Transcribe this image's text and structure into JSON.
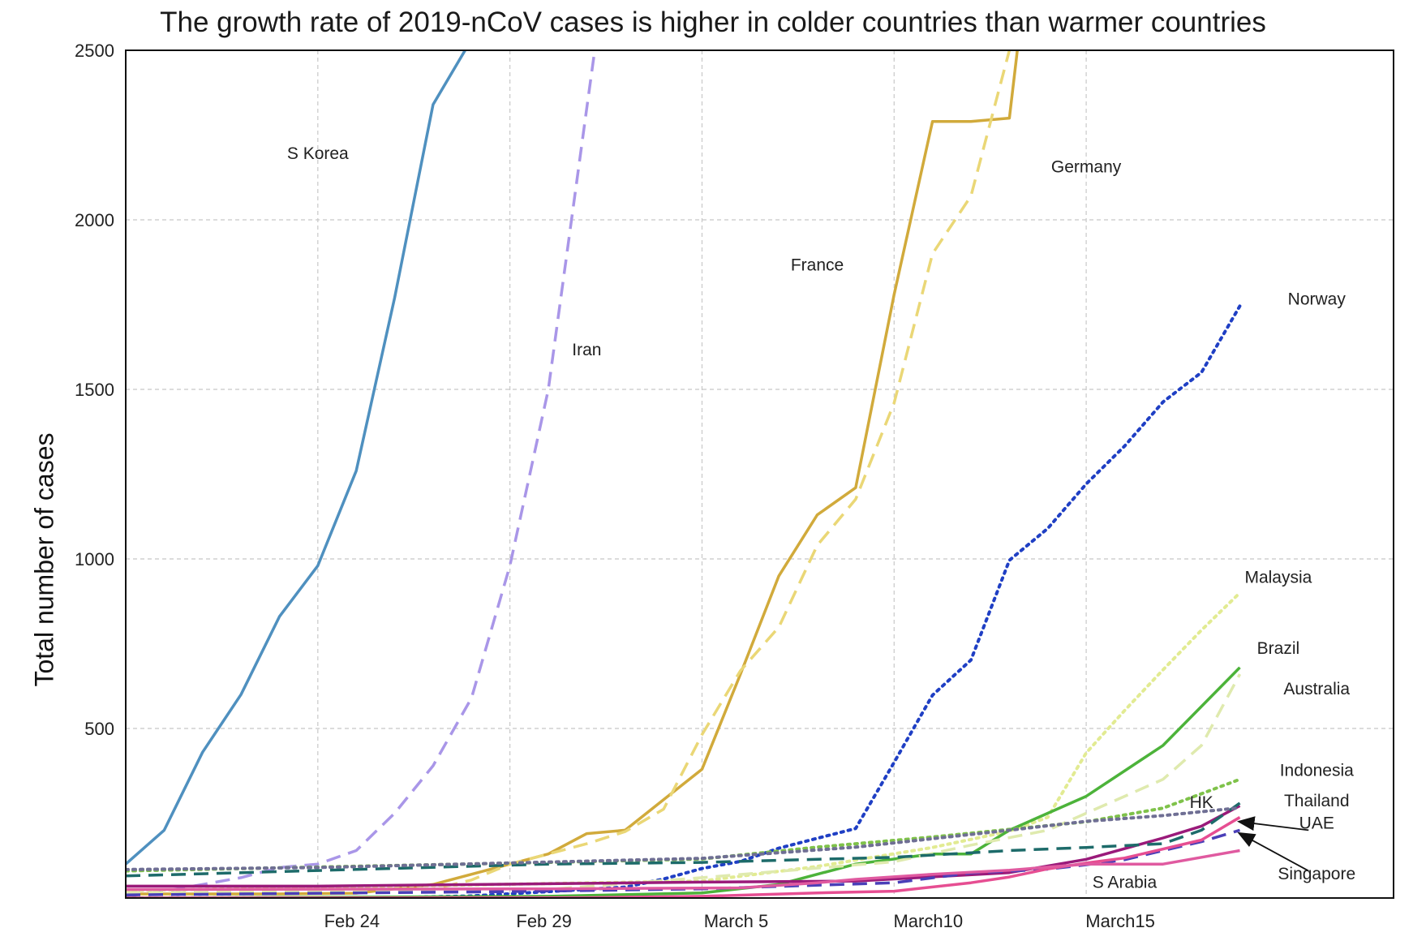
{
  "chart_data": {
    "type": "line",
    "title": "The growth rate of 2019-nCoV cases is higher in colder countries than warmer countries",
    "ylabel": "Total number of cases",
    "xlabel": "",
    "x_range": [
      "2020-02-19",
      "2020-03-23"
    ],
    "ylim": [
      0,
      2500
    ],
    "grid": true,
    "x_ticks": [
      {
        "date": "2020-02-24",
        "label": "Feb 24"
      },
      {
        "date": "2020-02-29",
        "label": "Feb 29"
      },
      {
        "date": "2020-03-05",
        "label": "March 5"
      },
      {
        "date": "2020-03-10",
        "label": "March10"
      },
      {
        "date": "2020-03-15",
        "label": "March15"
      }
    ],
    "y_ticks": [
      500,
      1000,
      1500,
      2000,
      2500
    ],
    "series": [
      {
        "name": "S Korea",
        "color": "#4f90bf",
        "dash": "solid",
        "label_at": [
          "2020-02-24",
          2180
        ],
        "points": [
          [
            "2020-02-19",
            100
          ],
          [
            "2020-02-20",
            200
          ],
          [
            "2020-02-21",
            430
          ],
          [
            "2020-02-22",
            600
          ],
          [
            "2020-02-23",
            830
          ],
          [
            "2020-02-24",
            980
          ],
          [
            "2020-02-25",
            1260
          ],
          [
            "2020-02-26",
            1770
          ],
          [
            "2020-02-27",
            2340
          ],
          [
            "2020-02-27T20:00",
            2500
          ]
        ]
      },
      {
        "name": "Iran",
        "color": "#a996e8",
        "dash": "dashed",
        "label_at": [
          "2020-03-02",
          1600
        ],
        "points": [
          [
            "2020-02-19",
            5
          ],
          [
            "2020-02-20",
            20
          ],
          [
            "2020-02-21",
            40
          ],
          [
            "2020-02-22",
            60
          ],
          [
            "2020-02-23",
            90
          ],
          [
            "2020-02-24",
            100
          ],
          [
            "2020-02-25",
            140
          ],
          [
            "2020-02-26",
            250
          ],
          [
            "2020-02-27",
            390
          ],
          [
            "2020-02-28",
            590
          ],
          [
            "2020-02-29",
            980
          ],
          [
            "2020-03-01",
            1500
          ],
          [
            "2020-03-02",
            2330
          ],
          [
            "2020-03-02T05:00",
            2500
          ]
        ]
      },
      {
        "name": "France",
        "color": "#d1aa3b",
        "dash": "solid",
        "label_at": [
          "2020-03-08",
          1850
        ],
        "points": [
          [
            "2020-02-19",
            12
          ],
          [
            "2020-02-23",
            12
          ],
          [
            "2020-02-25",
            14
          ],
          [
            "2020-02-27",
            40
          ],
          [
            "2020-02-29",
            100
          ],
          [
            "2020-03-01",
            130
          ],
          [
            "2020-03-02",
            190
          ],
          [
            "2020-03-03",
            200
          ],
          [
            "2020-03-04",
            290
          ],
          [
            "2020-03-05",
            380
          ],
          [
            "2020-03-06",
            660
          ],
          [
            "2020-03-07",
            950
          ],
          [
            "2020-03-08",
            1130
          ],
          [
            "2020-03-09",
            1210
          ],
          [
            "2020-03-10",
            1780
          ],
          [
            "2020-03-11",
            2290
          ],
          [
            "2020-03-12",
            2290
          ],
          [
            "2020-03-13",
            2300
          ],
          [
            "2020-03-13T05:00",
            2500
          ]
        ]
      },
      {
        "name": "Germany",
        "color": "#ead776",
        "dash": "dashed",
        "label_at": [
          "2020-03-15",
          2140
        ],
        "points": [
          [
            "2020-02-19",
            16
          ],
          [
            "2020-02-25",
            16
          ],
          [
            "2020-02-26",
            18
          ],
          [
            "2020-02-27",
            26
          ],
          [
            "2020-02-28",
            53
          ],
          [
            "2020-02-29",
            100
          ],
          [
            "2020-03-01",
            130
          ],
          [
            "2020-03-02",
            160
          ],
          [
            "2020-03-03",
            196
          ],
          [
            "2020-03-04",
            262
          ],
          [
            "2020-03-05",
            482
          ],
          [
            "2020-03-06",
            670
          ],
          [
            "2020-03-07",
            799
          ],
          [
            "2020-03-08",
            1040
          ],
          [
            "2020-03-09",
            1176
          ],
          [
            "2020-03-10",
            1460
          ],
          [
            "2020-03-11",
            1900
          ],
          [
            "2020-03-12",
            2070
          ],
          [
            "2020-03-13",
            2500
          ]
        ]
      },
      {
        "name": "Norway",
        "color": "#1f3fc4",
        "dash": "dotted",
        "label_at": [
          "2020-03-21",
          1750
        ],
        "points": [
          [
            "2020-02-19",
            0
          ],
          [
            "2020-02-26",
            1
          ],
          [
            "2020-02-28",
            6
          ],
          [
            "2020-03-01",
            19
          ],
          [
            "2020-03-03",
            32
          ],
          [
            "2020-03-04",
            56
          ],
          [
            "2020-03-05",
            87
          ],
          [
            "2020-03-06",
            108
          ],
          [
            "2020-03-07",
            147
          ],
          [
            "2020-03-08",
            176
          ],
          [
            "2020-03-09",
            205
          ],
          [
            "2020-03-10",
            400
          ],
          [
            "2020-03-11",
            598
          ],
          [
            "2020-03-12",
            702
          ],
          [
            "2020-03-13",
            996
          ],
          [
            "2020-03-14",
            1090
          ],
          [
            "2020-03-15",
            1221
          ],
          [
            "2020-03-16",
            1333
          ],
          [
            "2020-03-17",
            1463
          ],
          [
            "2020-03-18",
            1550
          ],
          [
            "2020-03-19",
            1746
          ]
        ]
      },
      {
        "name": "Malaysia",
        "color": "#e2eb92",
        "dash": "dotted",
        "label_at": [
          "2020-03-20",
          930
        ],
        "points": [
          [
            "2020-02-19",
            22
          ],
          [
            "2020-03-05",
            50
          ],
          [
            "2020-03-08",
            93
          ],
          [
            "2020-03-11",
            149
          ],
          [
            "2020-03-13",
            197
          ],
          [
            "2020-03-14",
            238
          ],
          [
            "2020-03-15",
            428
          ],
          [
            "2020-03-16",
            553
          ],
          [
            "2020-03-17",
            673
          ],
          [
            "2020-03-18",
            790
          ],
          [
            "2020-03-19",
            900
          ]
        ]
      },
      {
        "name": "Brazil",
        "color": "#4cb33a",
        "dash": "solid",
        "label_at": [
          "2020-03-20",
          720
        ],
        "points": [
          [
            "2020-02-19",
            0
          ],
          [
            "2020-03-01",
            5
          ],
          [
            "2020-03-05",
            15
          ],
          [
            "2020-03-07",
            40
          ],
          [
            "2020-03-09",
            100
          ],
          [
            "2020-03-11",
            130
          ],
          [
            "2020-03-12",
            130
          ],
          [
            "2020-03-13",
            200
          ],
          [
            "2020-03-14",
            250
          ],
          [
            "2020-03-15",
            300
          ],
          [
            "2020-03-17",
            450
          ],
          [
            "2020-03-19",
            680
          ]
        ]
      },
      {
        "name": "Australia",
        "color": "#dfeaae",
        "dash": "dashed",
        "label_at": [
          "2020-03-21",
          600
        ],
        "points": [
          [
            "2020-02-19",
            15
          ],
          [
            "2020-03-01",
            25
          ],
          [
            "2020-03-05",
            60
          ],
          [
            "2020-03-10",
            107
          ],
          [
            "2020-03-12",
            156
          ],
          [
            "2020-03-14",
            200
          ],
          [
            "2020-03-15",
            250
          ],
          [
            "2020-03-16",
            300
          ],
          [
            "2020-03-17",
            350
          ],
          [
            "2020-03-18",
            450
          ],
          [
            "2020-03-19",
            660
          ]
        ]
      },
      {
        "name": "Indonesia",
        "color": "#7fc24a",
        "dash": "dotted",
        "label_at": [
          "2020-03-21",
          360
        ],
        "points": [
          [
            "2020-02-19",
            80
          ],
          [
            "2020-03-01",
            105
          ],
          [
            "2020-03-05",
            115
          ],
          [
            "2020-03-08",
            150
          ],
          [
            "2020-03-11",
            180
          ],
          [
            "2020-03-15",
            225
          ],
          [
            "2020-03-17",
            265
          ],
          [
            "2020-03-19",
            350
          ]
        ]
      },
      {
        "name": "Thailand",
        "color": "#9a1a7a",
        "dash": "solid",
        "label_at": [
          "2020-03-21",
          270
        ],
        "points": [
          [
            "2020-02-19",
            35
          ],
          [
            "2020-02-24",
            35
          ],
          [
            "2020-03-01",
            42
          ],
          [
            "2020-03-05",
            47
          ],
          [
            "2020-03-09",
            50
          ],
          [
            "2020-03-13",
            75
          ],
          [
            "2020-03-15",
            114
          ],
          [
            "2020-03-17",
            177
          ],
          [
            "2020-03-18",
            212
          ],
          [
            "2020-03-19",
            272
          ]
        ]
      },
      {
        "name": "HK",
        "color": "#1d6b6a",
        "dash": "dashed",
        "label_at": [
          "2020-03-18",
          265
        ],
        "points": [
          [
            "2020-02-19",
            65
          ],
          [
            "2020-02-24",
            81
          ],
          [
            "2020-03-01",
            100
          ],
          [
            "2020-03-05",
            105
          ],
          [
            "2020-03-10",
            120
          ],
          [
            "2020-03-13",
            140
          ],
          [
            "2020-03-15",
            149
          ],
          [
            "2020-03-17",
            160
          ],
          [
            "2020-03-18",
            200
          ],
          [
            "2020-03-19",
            280
          ]
        ]
      },
      {
        "name": "UAE",
        "color": "#4a3fb8",
        "dash": "dashed",
        "label_at": [
          "2020-03-21",
          205
        ],
        "points": [
          [
            "2020-02-19",
            9
          ],
          [
            "2020-02-29",
            19
          ],
          [
            "2020-03-05",
            27
          ],
          [
            "2020-03-10",
            45
          ],
          [
            "2020-03-12",
            74
          ],
          [
            "2020-03-14",
            85
          ],
          [
            "2020-03-15",
            98
          ],
          [
            "2020-03-16",
            113
          ],
          [
            "2020-03-17",
            140
          ],
          [
            "2020-03-18",
            166
          ],
          [
            "2020-03-19",
            200
          ]
        ]
      },
      {
        "name": "Singapore",
        "color": "#6f6f94",
        "dash": "dotted",
        "label_at": [
          "2020-03-21",
          55
        ],
        "points": [
          [
            "2020-02-19",
            84
          ],
          [
            "2020-02-24",
            90
          ],
          [
            "2020-03-01",
            106
          ],
          [
            "2020-03-05",
            117
          ],
          [
            "2020-03-09",
            150
          ],
          [
            "2020-03-13",
            200
          ],
          [
            "2020-03-15",
            226
          ],
          [
            "2020-03-17",
            243
          ],
          [
            "2020-03-19",
            266
          ]
        ]
      },
      {
        "name": "S Arabia",
        "color": "#e64e92",
        "dash": "solid",
        "label_at": [
          "2020-03-16",
          30
        ],
        "points": [
          [
            "2020-02-19",
            0
          ],
          [
            "2020-03-02",
            1
          ],
          [
            "2020-03-05",
            5
          ],
          [
            "2020-03-08",
            15
          ],
          [
            "2020-03-10",
            20
          ],
          [
            "2020-03-12",
            45
          ],
          [
            "2020-03-13",
            62
          ],
          [
            "2020-03-14",
            86
          ],
          [
            "2020-03-15",
            103
          ],
          [
            "2020-03-16",
            118
          ],
          [
            "2020-03-18",
            171
          ],
          [
            "2020-03-19",
            238
          ]
        ]
      },
      {
        "name": "",
        "color": "#e05aa0",
        "dash": "solid",
        "points": [
          [
            "2020-02-19",
            25
          ],
          [
            "2020-03-01",
            27
          ],
          [
            "2020-03-06",
            30
          ],
          [
            "2020-03-08",
            45
          ],
          [
            "2020-03-09",
            55
          ],
          [
            "2020-03-11",
            70
          ],
          [
            "2020-03-13",
            82
          ],
          [
            "2020-03-15",
            100
          ],
          [
            "2020-03-17",
            100
          ],
          [
            "2020-03-19",
            140
          ]
        ]
      }
    ],
    "annotations": [
      {
        "text": "UAE",
        "arrow_from": [
          "2020-03-21",
          200
        ],
        "arrow_to": [
          "2020-03-19",
          225
        ]
      },
      {
        "text": "Singapore",
        "arrow_from": [
          "2020-03-21",
          80
        ],
        "arrow_to": [
          "2020-03-19",
          190
        ]
      }
    ]
  }
}
